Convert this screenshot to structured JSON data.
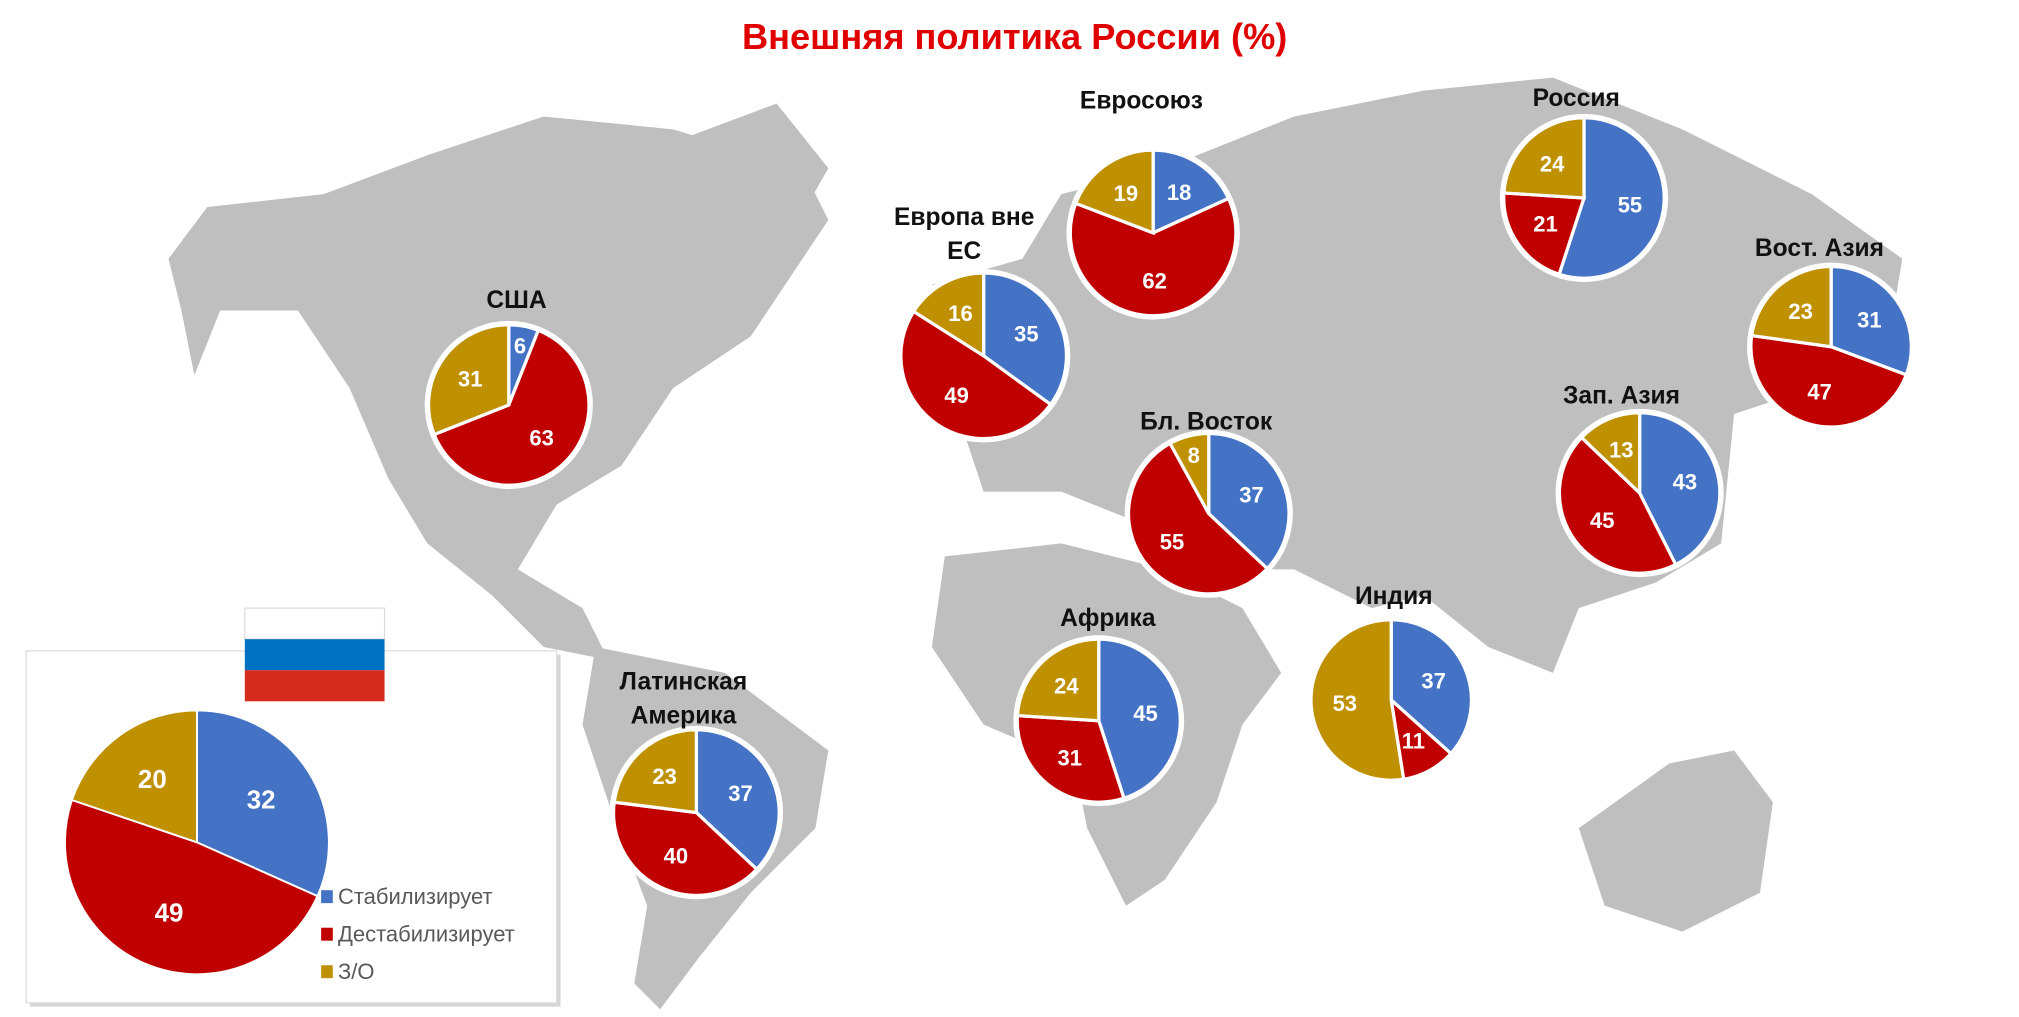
{
  "chart_data": {
    "type": "pie",
    "title": "Внешняя политика России (%)",
    "legend": {
      "placement": "bottom-left",
      "entries": [
        "Стабилизирует",
        "Дестабилизирует",
        "З/О"
      ]
    },
    "colors": {
      "Стабилизирует": "#4472c4",
      "Дестабилизирует": "#c00000",
      "З/О": "#bf9000"
    },
    "map_color": "#bfbfbf",
    "flag_colors": [
      "#ffffff",
      "#0070c0",
      "#d52b1e"
    ],
    "pies": [
      {
        "region": "США",
        "values": [
          6,
          63,
          31
        ]
      },
      {
        "region": "Евросоюз",
        "values": [
          18,
          62,
          19
        ]
      },
      {
        "region": "Европа вне ЕС",
        "values": [
          35,
          49,
          16
        ]
      },
      {
        "region": "Россия",
        "values": [
          55,
          21,
          24
        ]
      },
      {
        "region": "Вост. Азия",
        "values": [
          31,
          47,
          23
        ]
      },
      {
        "region": "Зап. Азия",
        "values": [
          43,
          45,
          13
        ]
      },
      {
        "region": "Бл. Восток",
        "values": [
          37,
          55,
          8
        ]
      },
      {
        "region": "Африка",
        "values": [
          45,
          31,
          24
        ]
      },
      {
        "region": "Индия",
        "values": [
          37,
          11,
          53
        ]
      },
      {
        "region": "Латинская Америка",
        "values": [
          37,
          40,
          23
        ]
      },
      {
        "region": "",
        "values": [
          32,
          49,
          20
        ]
      }
    ]
  }
}
